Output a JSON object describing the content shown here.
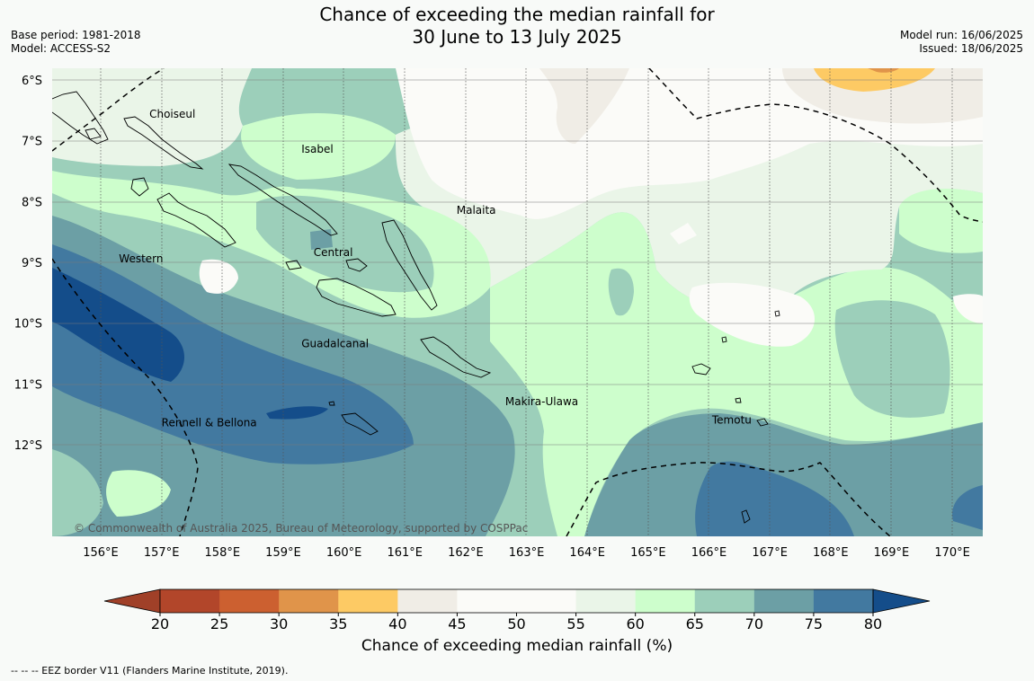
{
  "title_line1": "Chance of exceeding the median rainfall for",
  "title_line2": "30 June to 13 July 2025",
  "base_period": "Base period: 1981-2018",
  "model": "Model: ACCESS-S2",
  "model_run": "Model run: 16/06/2025",
  "issued": "Issued: 18/06/2025",
  "copyright": "© Commonwealth of Australia 2025, Bureau of Meteorology, supported by COSPPac",
  "lat_labels": [
    "6°S",
    "7°S",
    "8°S",
    "9°S",
    "10°S",
    "11°S",
    "12°S"
  ],
  "lon_labels": [
    "156°E",
    "157°E",
    "158°E",
    "159°E",
    "160°E",
    "161°E",
    "162°E",
    "163°E",
    "164°E",
    "165°E",
    "166°E",
    "167°E",
    "168°E",
    "169°E",
    "170°E"
  ],
  "places": [
    {
      "name": "Choiseul",
      "lon": 156.8,
      "lat": -6.62
    },
    {
      "name": "Isabel",
      "lon": 159.3,
      "lat": -7.2
    },
    {
      "name": "Malaita",
      "lon": 161.85,
      "lat": -8.2
    },
    {
      "name": "Western",
      "lon": 156.3,
      "lat": -9.0
    },
    {
      "name": "Central",
      "lon": 159.5,
      "lat": -8.9
    },
    {
      "name": "Guadalcanal",
      "lon": 159.3,
      "lat": -10.4
    },
    {
      "name": "Rennell & Bellona",
      "lon": 157.0,
      "lat": -11.7
    },
    {
      "name": "Makira-Ulawa",
      "lon": 162.65,
      "lat": -11.35
    },
    {
      "name": "Temotu",
      "lon": 166.05,
      "lat": -11.65
    }
  ],
  "colorbar": {
    "label": "Chance of exceeding median rainfall (%)",
    "ticks": [
      "20",
      "25",
      "30",
      "35",
      "40",
      "45",
      "50",
      "55",
      "60",
      "65",
      "70",
      "75",
      "80"
    ],
    "colors": [
      "#b2462a",
      "#cc6030",
      "#e0944a",
      "#fdca64",
      "#f0ede6",
      "#fbfbf8",
      "#fbfbf8",
      "#eaf5e8",
      "#cdfecc",
      "#9ccfba",
      "#6c9fa5",
      "#4279a0"
    ],
    "under_color": "#a04028",
    "over_color": "#144d8a"
  },
  "footer": "--  --  -- EEZ border V11 (Flanders Marine Institute, 2019)."
}
